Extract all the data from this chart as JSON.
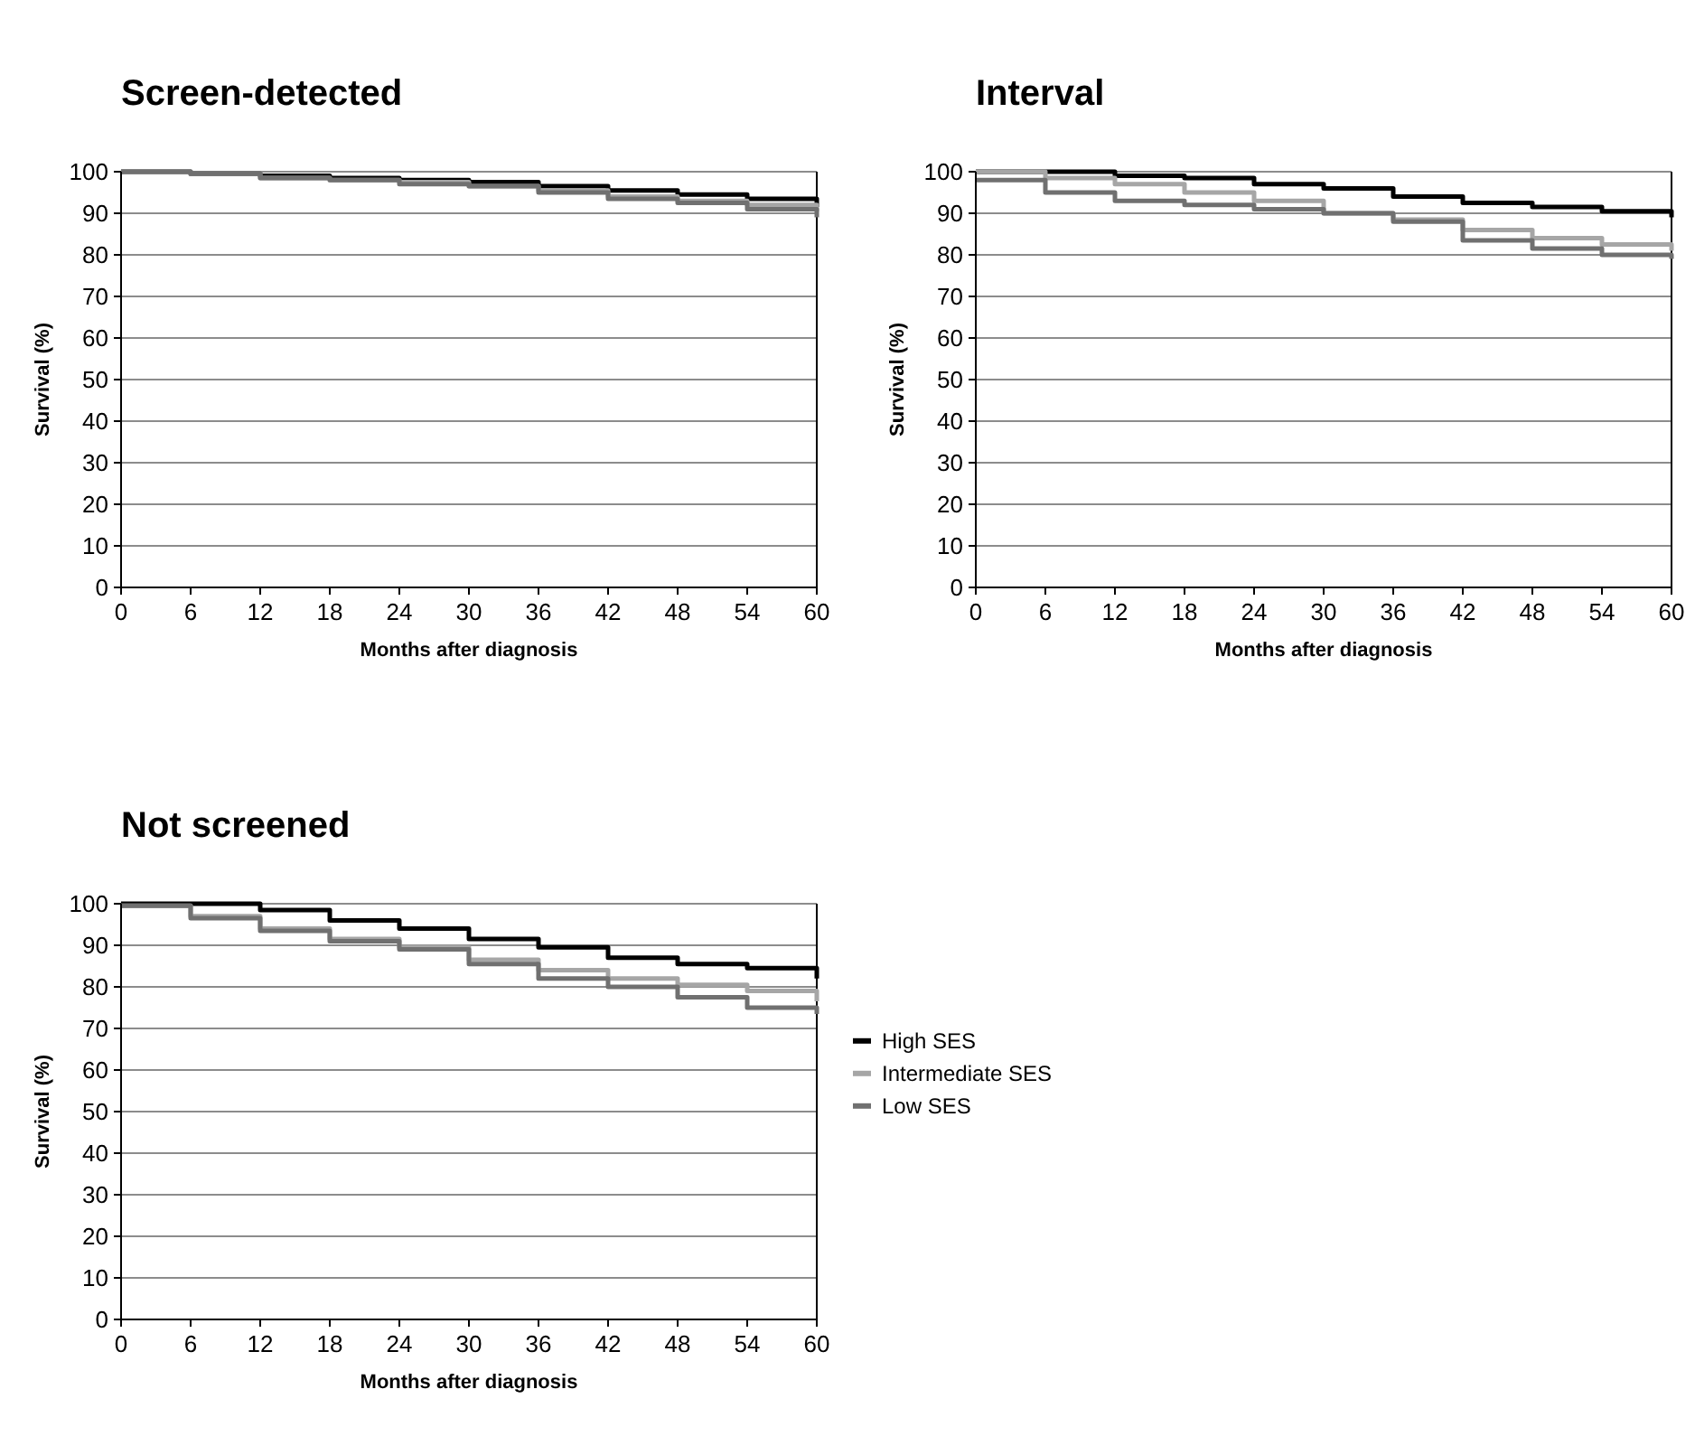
{
  "chart_data": [
    {
      "type": "step",
      "title": "Screen-detected",
      "xlabel": "Months after diagnosis",
      "ylabel": "Survival  (%)",
      "x": [
        0,
        6,
        12,
        18,
        24,
        30,
        36,
        42,
        48,
        54,
        60
      ],
      "xlim": [
        0,
        60
      ],
      "xticks": [
        0,
        6,
        12,
        18,
        24,
        30,
        36,
        42,
        48,
        54,
        60
      ],
      "ylim": [
        0,
        100
      ],
      "yticks": [
        0,
        10,
        20,
        30,
        40,
        50,
        60,
        70,
        80,
        90,
        100
      ],
      "grid": "y",
      "legend": false,
      "series": [
        {
          "color": "#000000",
          "values": [
            100,
            99.5,
            99,
            98.5,
            98,
            97.5,
            96.5,
            95.5,
            94.5,
            93.5,
            91.5
          ]
        },
        {
          "color": "#a6a6a6",
          "values": [
            100,
            99.5,
            98.5,
            98,
            97.5,
            96.5,
            95.5,
            94,
            93,
            92,
            90.5
          ]
        },
        {
          "color": "#707070",
          "values": [
            100,
            99.5,
            98.5,
            98,
            97,
            96.5,
            95,
            93.5,
            92.5,
            91,
            89
          ]
        }
      ]
    },
    {
      "type": "step",
      "title": "Interval",
      "xlabel": "Months after diagnosis",
      "ylabel": "Survival  (%)",
      "x": [
        0,
        6,
        12,
        18,
        24,
        30,
        36,
        42,
        48,
        54,
        60
      ],
      "xlim": [
        0,
        60
      ],
      "xticks": [
        0,
        6,
        12,
        18,
        24,
        30,
        36,
        42,
        48,
        54,
        60
      ],
      "ylim": [
        0,
        100
      ],
      "yticks": [
        0,
        10,
        20,
        30,
        40,
        50,
        60,
        70,
        80,
        90,
        100
      ],
      "grid": "y",
      "legend": false,
      "series": [
        {
          "color": "#000000",
          "values": [
            100,
            100,
            99,
            98.5,
            97,
            96,
            94,
            92.5,
            91.5,
            90.5,
            89
          ]
        },
        {
          "color": "#a6a6a6",
          "values": [
            100,
            98.5,
            97,
            95,
            93,
            90,
            88.5,
            86,
            84,
            82.5,
            81
          ]
        },
        {
          "color": "#707070",
          "values": [
            98,
            95,
            93,
            92,
            91,
            90,
            88,
            83.5,
            81.5,
            80,
            79
          ]
        }
      ]
    },
    {
      "type": "step",
      "title": "Not screened",
      "xlabel": "Months after diagnosis",
      "ylabel": "Survival  (%)",
      "x": [
        0,
        6,
        12,
        18,
        24,
        30,
        36,
        42,
        48,
        54,
        60
      ],
      "xlim": [
        0,
        60
      ],
      "xticks": [
        0,
        6,
        12,
        18,
        24,
        30,
        36,
        42,
        48,
        54,
        60
      ],
      "ylim": [
        0,
        100
      ],
      "yticks": [
        0,
        10,
        20,
        30,
        40,
        50,
        60,
        70,
        80,
        90,
        100
      ],
      "grid": "y",
      "legend": "right",
      "series": [
        {
          "name": "High SES",
          "color": "#000000",
          "values": [
            100,
            100,
            98.5,
            96,
            94,
            91.5,
            89.5,
            87,
            85.5,
            84.5,
            82
          ]
        },
        {
          "name": "Intermediate SES",
          "color": "#a6a6a6",
          "values": [
            99.5,
            97,
            94,
            91.5,
            89.5,
            86.5,
            84,
            82,
            80.5,
            79,
            76.5
          ]
        },
        {
          "name": "Low SES",
          "color": "#707070",
          "values": [
            99.5,
            96.5,
            93.5,
            91,
            89,
            85.5,
            82,
            80,
            77.5,
            75,
            73.5
          ]
        }
      ]
    }
  ]
}
